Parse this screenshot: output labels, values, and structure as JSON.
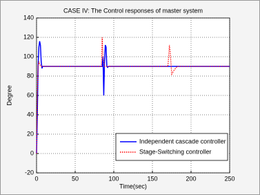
{
  "chart_data": {
    "type": "line",
    "title": "CASE IV: The Control responses of master system",
    "xlabel": "Time(sec)",
    "ylabel": "Degree",
    "xlim": [
      0,
      250
    ],
    "xticks": [
      0,
      50,
      100,
      150,
      200,
      250
    ],
    "ylim": [
      -20,
      140
    ],
    "yticks": [
      -20,
      0,
      20,
      40,
      60,
      80,
      100,
      120,
      140
    ],
    "grid": true,
    "legend": "lower right",
    "series": [
      {
        "name": "Independent cascade controller",
        "color": "#0000ff",
        "style": "solid",
        "x": [
          0,
          1,
          2,
          3,
          4,
          5,
          6,
          7,
          8,
          85,
          86,
          87,
          88,
          89,
          90,
          91,
          92,
          93,
          250
        ],
        "values": [
          0,
          40,
          90,
          110,
          116,
          112,
          95,
          88,
          90,
          90,
          100,
          60,
          95,
          112,
          110,
          90,
          89,
          90,
          90
        ]
      },
      {
        "name": "Stage-Switching controller",
        "color": "#ff0000",
        "style": "dotted",
        "x": [
          0,
          1,
          2,
          3,
          4,
          6,
          8,
          84,
          85,
          86,
          87,
          88,
          90,
          170,
          171,
          172,
          173,
          175,
          178,
          182,
          185,
          250
        ],
        "values": [
          0,
          60,
          90,
          95,
          92,
          90,
          90,
          90,
          120,
          100,
          95,
          90,
          90,
          90,
          100,
          112,
          105,
          82,
          86,
          90,
          90,
          90
        ]
      }
    ]
  }
}
